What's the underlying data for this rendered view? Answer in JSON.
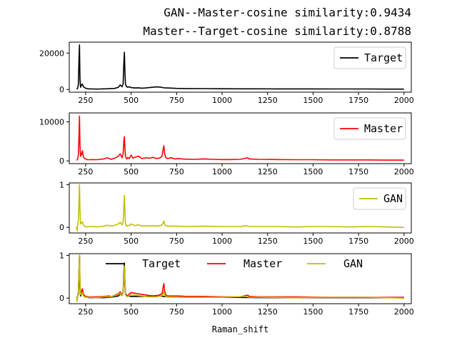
{
  "titles": {
    "line1": "GAN--Master-cosine similarity:0.9434",
    "line2": "Master--Target-cosine similarity:0.8788"
  },
  "chart_data": [
    {
      "type": "line",
      "xlim": [
        160,
        2040
      ],
      "ylim": [
        -1500,
        26000
      ],
      "xticks": [
        250,
        500,
        750,
        1000,
        1250,
        1500,
        1750,
        2000
      ],
      "yticks": [
        0,
        20000
      ],
      "legend": "top-right",
      "series": [
        {
          "name": "Target",
          "color": "#000000",
          "x": [
            200,
            205,
            210,
            213,
            216,
            219,
            222,
            226,
            232,
            238,
            244,
            250,
            260,
            270,
            290,
            310,
            330,
            350,
            370,
            390,
            410,
            430,
            440,
            450,
            456,
            460,
            463,
            466,
            469,
            472,
            476,
            482,
            490,
            500,
            520,
            540,
            560,
            580,
            600,
            620,
            640,
            660,
            680,
            700,
            750,
            800,
            900,
            1000,
            1100,
            1200,
            1300,
            1400,
            1500,
            1600,
            1700,
            1800,
            1900,
            2000
          ],
          "y": [
            500,
            400,
            2500,
            15000,
            24500,
            6000,
            1200,
            2200,
            3000,
            1500,
            1000,
            700,
            400,
            300,
            250,
            200,
            250,
            350,
            400,
            500,
            600,
            1200,
            2500,
            1500,
            3000,
            14000,
            20500,
            9000,
            3000,
            2000,
            1500,
            1200,
            1500,
            1000,
            800,
            900,
            700,
            800,
            1000,
            1200,
            1400,
            1300,
            900,
            800,
            600,
            500,
            450,
            400,
            350,
            350,
            300,
            300,
            300,
            250,
            250,
            250,
            200,
            200
          ]
        }
      ]
    },
    {
      "type": "line",
      "xlim": [
        160,
        2040
      ],
      "ylim": [
        -700,
        12300
      ],
      "xticks": [
        250,
        500,
        750,
        1000,
        1250,
        1500,
        1750,
        2000
      ],
      "yticks": [
        0,
        10000
      ],
      "legend": "top-right",
      "series": [
        {
          "name": "Master",
          "color": "#ff0000",
          "x": [
            200,
            205,
            210,
            213,
            216,
            219,
            222,
            226,
            232,
            238,
            244,
            250,
            260,
            270,
            290,
            310,
            330,
            350,
            370,
            380,
            390,
            410,
            430,
            440,
            450,
            456,
            460,
            463,
            466,
            469,
            472,
            476,
            482,
            490,
            500,
            510,
            520,
            540,
            560,
            580,
            600,
            620,
            640,
            660,
            670,
            676,
            680,
            684,
            690,
            700,
            720,
            740,
            760,
            780,
            800,
            850,
            900,
            950,
            1000,
            1050,
            1100,
            1130,
            1140,
            1150,
            1200,
            1300,
            1400,
            1500,
            1600,
            1700,
            1800,
            1900,
            2000
          ],
          "y": [
            200,
            300,
            1500,
            6000,
            11500,
            4000,
            1200,
            1500,
            2600,
            1000,
            700,
            500,
            300,
            300,
            350,
            300,
            400,
            500,
            800,
            600,
            400,
            700,
            1200,
            1800,
            800,
            1800,
            5000,
            6200,
            3000,
            1200,
            800,
            500,
            900,
            600,
            1500,
            700,
            900,
            1200,
            600,
            800,
            700,
            900,
            600,
            800,
            1200,
            3000,
            3900,
            2000,
            900,
            600,
            800,
            500,
            600,
            500,
            450,
            400,
            500,
            400,
            350,
            350,
            400,
            700,
            800,
            500,
            400,
            350,
            300,
            300,
            250,
            250,
            250,
            200,
            200
          ]
        }
      ]
    },
    {
      "type": "line",
      "xlim": [
        160,
        2040
      ],
      "ylim": [
        -0.13,
        1.04
      ],
      "xticks": [
        250,
        500,
        750,
        1000,
        1250,
        1500,
        1750,
        2000
      ],
      "yticks": [
        0,
        1
      ],
      "legend": "top-right",
      "series": [
        {
          "name": "GAN",
          "color": "#bfbf00",
          "x": [
            200,
            203,
            206,
            210,
            213,
            216,
            219,
            222,
            226,
            232,
            238,
            244,
            250,
            260,
            270,
            290,
            310,
            330,
            350,
            370,
            390,
            410,
            430,
            440,
            450,
            456,
            460,
            463,
            466,
            469,
            472,
            476,
            482,
            490,
            500,
            520,
            540,
            560,
            580,
            600,
            620,
            640,
            660,
            670,
            676,
            680,
            684,
            690,
            700,
            750,
            800,
            900,
            1000,
            1100,
            1130,
            1150,
            1200,
            1300,
            1400,
            1500,
            1600,
            1700,
            1800,
            1900,
            2000
          ],
          "y": [
            0.02,
            -0.08,
            0.05,
            0.15,
            0.55,
            1.0,
            0.4,
            0.08,
            0.1,
            0.13,
            0.05,
            0.03,
            0.02,
            0.01,
            0.02,
            0.02,
            0.01,
            0.02,
            0.03,
            0.05,
            0.03,
            0.05,
            0.08,
            0.12,
            0.06,
            0.12,
            0.45,
            0.75,
            0.35,
            0.08,
            0.05,
            0.03,
            0.05,
            0.04,
            0.08,
            0.04,
            0.06,
            0.03,
            0.04,
            0.03,
            0.04,
            0.03,
            0.04,
            0.06,
            0.1,
            0.15,
            0.08,
            0.04,
            0.03,
            0.03,
            0.02,
            0.03,
            0.02,
            0.02,
            0.04,
            0.02,
            0.02,
            0.02,
            0.01,
            0.02,
            0.02,
            0.01,
            0.02,
            0.01,
            0.0
          ]
        }
      ]
    },
    {
      "type": "line",
      "xlim": [
        160,
        2040
      ],
      "ylim": [
        -0.13,
        1.04
      ],
      "xticks": [
        250,
        500,
        750,
        1000,
        1250,
        1500,
        1750,
        2000
      ],
      "yticks": [
        0,
        1
      ],
      "xlabel": "Raman_shift",
      "legend": "top-center",
      "series": [
        {
          "name": "Target",
          "color": "#000000",
          "x": [
            200,
            205,
            210,
            213,
            216,
            219,
            222,
            226,
            232,
            238,
            244,
            250,
            270,
            310,
            350,
            390,
            430,
            440,
            450,
            456,
            460,
            463,
            466,
            469,
            472,
            482,
            500,
            540,
            600,
            640,
            680,
            700,
            800,
            1000,
            1200,
            1400,
            1600,
            1800,
            2000
          ],
          "y": [
            0.02,
            0.02,
            0.1,
            0.6,
            1.0,
            0.25,
            0.05,
            0.09,
            0.12,
            0.06,
            0.04,
            0.03,
            0.01,
            0.01,
            0.01,
            0.02,
            0.05,
            0.1,
            0.06,
            0.12,
            0.57,
            0.82,
            0.37,
            0.12,
            0.08,
            0.05,
            0.04,
            0.04,
            0.04,
            0.06,
            0.04,
            0.03,
            0.02,
            0.02,
            0.01,
            0.01,
            0.01,
            0.01,
            0.01
          ]
        },
        {
          "name": "Master",
          "color": "#ff0000",
          "x": [
            200,
            205,
            210,
            213,
            216,
            219,
            222,
            226,
            232,
            238,
            244,
            250,
            270,
            310,
            350,
            380,
            390,
            430,
            440,
            450,
            456,
            460,
            463,
            466,
            469,
            476,
            500,
            540,
            600,
            640,
            670,
            676,
            680,
            684,
            690,
            700,
            760,
            800,
            900,
            1000,
            1100,
            1130,
            1140,
            1150,
            1200,
            1400,
            1600,
            1800,
            2000
          ],
          "y": [
            0.02,
            0.02,
            0.13,
            0.52,
            1.0,
            0.35,
            0.1,
            0.13,
            0.22,
            0.09,
            0.06,
            0.04,
            0.03,
            0.03,
            0.04,
            0.05,
            0.03,
            0.1,
            0.15,
            0.07,
            0.15,
            0.43,
            0.54,
            0.26,
            0.1,
            0.04,
            0.13,
            0.1,
            0.06,
            0.05,
            0.1,
            0.26,
            0.34,
            0.17,
            0.08,
            0.05,
            0.05,
            0.04,
            0.04,
            0.03,
            0.03,
            0.06,
            0.07,
            0.04,
            0.03,
            0.03,
            0.02,
            0.02,
            0.02
          ]
        },
        {
          "name": "GAN",
          "color": "#bfbf00",
          "x": [
            200,
            203,
            206,
            210,
            213,
            216,
            219,
            222,
            226,
            232,
            238,
            244,
            250,
            270,
            310,
            350,
            390,
            430,
            440,
            450,
            456,
            460,
            463,
            466,
            469,
            476,
            500,
            540,
            600,
            640,
            670,
            676,
            680,
            684,
            690,
            700,
            800,
            1000,
            1130,
            1150,
            1200,
            1400,
            1600,
            1800,
            2000
          ],
          "y": [
            0.02,
            -0.08,
            0.05,
            0.15,
            0.55,
            1.0,
            0.4,
            0.08,
            0.1,
            0.13,
            0.05,
            0.03,
            0.02,
            0.02,
            0.01,
            0.03,
            0.03,
            0.08,
            0.12,
            0.06,
            0.12,
            0.45,
            0.75,
            0.35,
            0.08,
            0.03,
            0.08,
            0.06,
            0.03,
            0.03,
            0.06,
            0.1,
            0.15,
            0.08,
            0.04,
            0.03,
            0.02,
            0.02,
            0.04,
            0.02,
            0.02,
            0.01,
            0.02,
            0.02,
            0.0
          ]
        }
      ]
    }
  ]
}
